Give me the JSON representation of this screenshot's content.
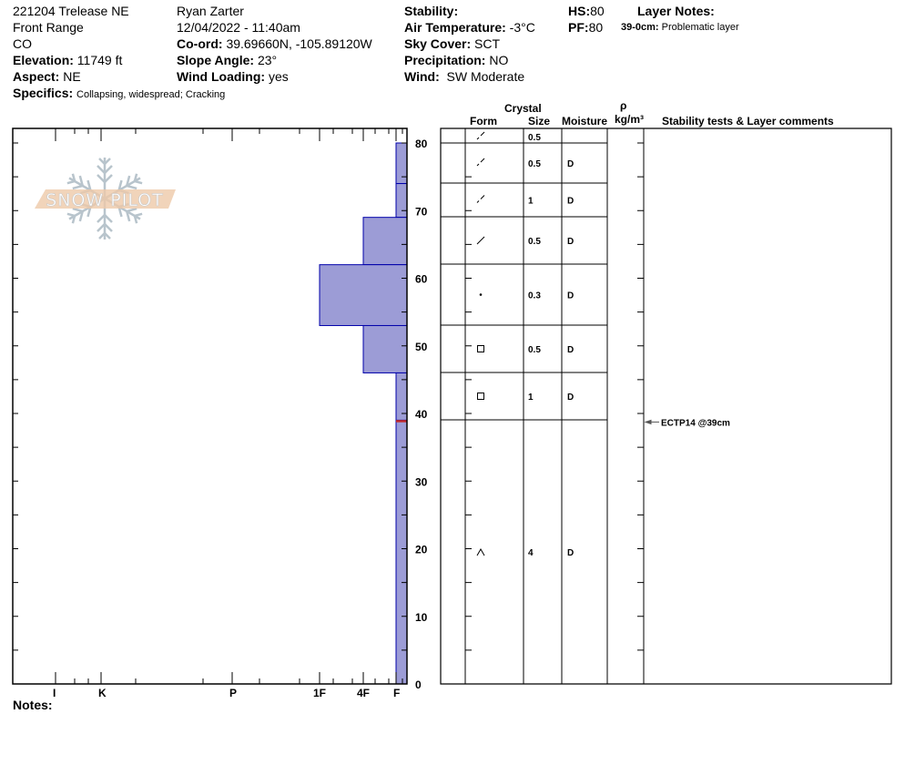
{
  "header": {
    "site": "221204 Trelease NE",
    "range": "Front Range",
    "state": "CO",
    "elevation": {
      "label": "Elevation:",
      "value": "11749 ft"
    },
    "aspect": {
      "label": "Aspect:",
      "value": "NE"
    },
    "specifics": {
      "label": "Specifics:",
      "value": "Collapsing, widespread; Cracking"
    },
    "observer": "Ryan Zarter",
    "datetime": "12/04/2022 - 11:40am",
    "coord": {
      "label": "Co-ord:",
      "value": "39.69660N, -105.89120W"
    },
    "slope": {
      "label": "Slope Angle:",
      "value": "23°"
    },
    "wind_loading": {
      "label": "Wind Loading:",
      "value": "yes"
    },
    "stability": {
      "label": "Stability:",
      "value": ""
    },
    "air_temp": {
      "label": "Air Temperature:",
      "value": "-3°C"
    },
    "sky": {
      "label": "Sky Cover:",
      "value": "SCT"
    },
    "precip": {
      "label": "Precipitation:",
      "value": "NO"
    },
    "wind": {
      "label": "Wind:",
      "value": "SW Moderate"
    },
    "hs": {
      "label": "HS:",
      "value": "80"
    },
    "pf": {
      "label": "PF:",
      "value": "80"
    },
    "layer_notes": {
      "label": "Layer Notes:",
      "range": "39-0cm:",
      "text": "Problematic layer"
    }
  },
  "logo_text": "SNOW PILOT",
  "notes_label": "Notes:",
  "table_headers": {
    "crystal": "Crystal",
    "form": "Form",
    "size": "Size",
    "moisture": "Moisture",
    "rho": "ρ",
    "density": "kg/m³",
    "comments": "Stability tests & Layer comments"
  },
  "chart_data": {
    "type": "bar",
    "y_ticks": [
      "0",
      "10",
      "20",
      "30",
      "40",
      "50",
      "60",
      "70",
      "80"
    ],
    "ylim": [
      0,
      80
    ],
    "x_ticks": [
      "I",
      "K",
      "P",
      "1F",
      "4F",
      "F"
    ],
    "fill_color": "#9c9cd6",
    "edge_color": "#0000aa",
    "layers": [
      {
        "top": 80,
        "bottom": 74,
        "hardness": "F"
      },
      {
        "top": 74,
        "bottom": 69,
        "hardness": "F"
      },
      {
        "top": 69,
        "bottom": 62,
        "hardness": "4F"
      },
      {
        "top": 62,
        "bottom": 53,
        "hardness": "1F"
      },
      {
        "top": 53,
        "bottom": 46,
        "hardness": "4F"
      },
      {
        "top": 46,
        "bottom": 39,
        "hardness": "F"
      },
      {
        "top": 39,
        "bottom": 0,
        "hardness": "F"
      }
    ],
    "marker_depth": 39,
    "marker_color": "#c0282c"
  },
  "rows": [
    {
      "form": "decomposing",
      "size": "0.5",
      "moisture": ""
    },
    {
      "form": "decomposing",
      "size": "0.5",
      "moisture": "D"
    },
    {
      "form": "decomposing",
      "size": "1",
      "moisture": "D"
    },
    {
      "form": "precip-particles",
      "size": "0.5",
      "moisture": "D"
    },
    {
      "form": "rounded",
      "size": "0.3",
      "moisture": "D"
    },
    {
      "form": "faceted",
      "size": "0.5",
      "moisture": "D"
    },
    {
      "form": "faceted",
      "size": "1",
      "moisture": "D"
    },
    {
      "form": "depth-hoar",
      "size": "4",
      "moisture": "D"
    }
  ],
  "stability_test": "ECTP14 @39cm"
}
